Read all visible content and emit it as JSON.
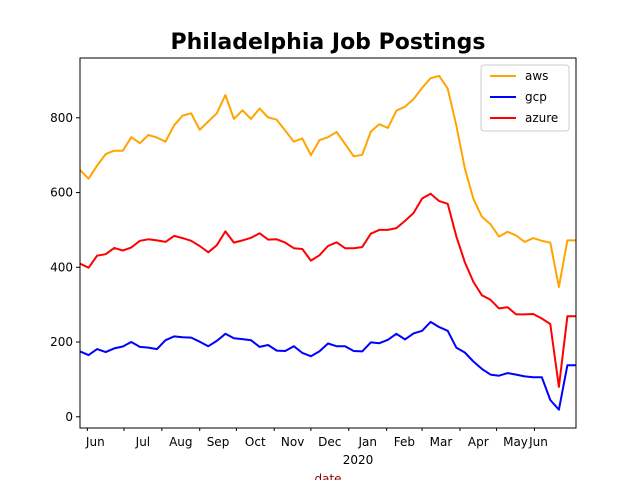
{
  "chart_data": {
    "type": "line",
    "title": "Philadelphia Job Postings",
    "xlabel": "date",
    "xlabel_color": "#8b0000",
    "ylabel": "",
    "ylim": [
      -30,
      960
    ],
    "yticks": [
      0,
      200,
      400,
      600,
      800
    ],
    "x_tick_labels": [
      "Jun",
      "Jul",
      "Aug",
      "Sep",
      "Oct",
      "Nov",
      "Dec",
      "Jan",
      "Feb",
      "Mar",
      "Apr",
      "May",
      "Jun"
    ],
    "x_year_label": "2020",
    "grid": false,
    "legend_position": "top-right",
    "x": [
      "2019-05-26",
      "2019-06-02",
      "2019-06-09",
      "2019-06-16",
      "2019-06-23",
      "2019-06-30",
      "2019-07-07",
      "2019-07-14",
      "2019-07-21",
      "2019-07-28",
      "2019-08-04",
      "2019-08-11",
      "2019-08-18",
      "2019-08-25",
      "2019-09-01",
      "2019-09-08",
      "2019-09-15",
      "2019-09-22",
      "2019-09-29",
      "2019-10-06",
      "2019-10-13",
      "2019-10-20",
      "2019-10-27",
      "2019-11-03",
      "2019-11-10",
      "2019-11-17",
      "2019-11-24",
      "2019-12-01",
      "2019-12-08",
      "2019-12-15",
      "2019-12-22",
      "2019-12-29",
      "2020-01-05",
      "2020-01-12",
      "2020-01-19",
      "2020-01-26",
      "2020-02-02",
      "2020-02-09",
      "2020-02-16",
      "2020-02-23",
      "2020-03-01",
      "2020-03-08",
      "2020-03-15",
      "2020-03-22",
      "2020-03-29",
      "2020-04-05",
      "2020-04-12",
      "2020-04-19",
      "2020-04-26",
      "2020-05-03",
      "2020-05-10",
      "2020-05-17",
      "2020-05-24",
      "2020-05-31",
      "2020-06-07",
      "2020-06-14",
      "2020-06-21",
      "2020-06-28",
      "2020-07-05"
    ],
    "series": [
      {
        "name": "aws",
        "color": "#ffa500",
        "values": [
          660,
          637,
          672,
          703,
          712,
          712,
          748,
          732,
          754,
          747,
          736,
          780,
          806,
          812,
          768,
          790,
          812,
          861,
          797,
          820,
          797,
          825,
          801,
          795,
          766,
          736,
          745,
          700,
          740,
          748,
          762,
          730,
          697,
          701,
          763,
          783,
          773,
          819,
          830,
          850,
          880,
          906,
          912,
          878,
          780,
          665,
          583,
          535,
          515,
          482,
          495,
          485,
          468,
          478,
          471,
          466,
          347,
          472,
          472
        ]
      },
      {
        "name": "gcp",
        "color": "#0000ff",
        "values": [
          175,
          165,
          181,
          173,
          183,
          188,
          200,
          187,
          185,
          181,
          205,
          215,
          213,
          212,
          201,
          189,
          203,
          222,
          210,
          208,
          205,
          187,
          192,
          177,
          176,
          189,
          171,
          162,
          175,
          196,
          189,
          189,
          176,
          175,
          199,
          197,
          206,
          222,
          207,
          223,
          230,
          254,
          240,
          230,
          185,
          172,
          148,
          128,
          113,
          110,
          117,
          113,
          108,
          106,
          106,
          45,
          19,
          138,
          138
        ]
      },
      {
        "name": "azure",
        "color": "#ff0000",
        "values": [
          410,
          399,
          431,
          435,
          452,
          445,
          453,
          471,
          475,
          472,
          468,
          484,
          478,
          471,
          457,
          440,
          459,
          496,
          466,
          472,
          479,
          491,
          474,
          475,
          466,
          451,
          449,
          418,
          432,
          457,
          467,
          451,
          451,
          454,
          490,
          500,
          500,
          505,
          524,
          545,
          584,
          597,
          577,
          570,
          483,
          414,
          361,
          325,
          313,
          290,
          293,
          274,
          274,
          275,
          263,
          248,
          80,
          269,
          269
        ]
      }
    ]
  }
}
